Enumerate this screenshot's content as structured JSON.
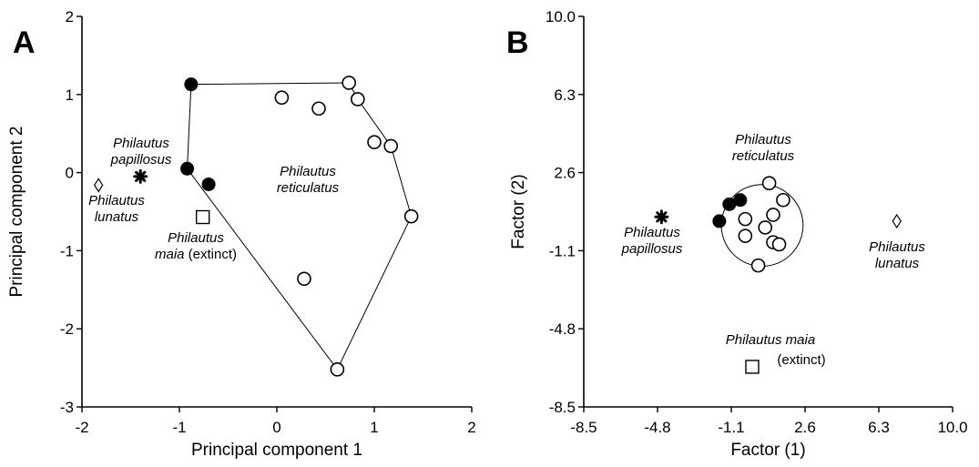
{
  "chart_data": [
    {
      "type": "scatter",
      "panel_label": "A",
      "xlabel": "Principal component 1",
      "ylabel": "Principal component 2",
      "xlim": [
        -2,
        2
      ],
      "ylim": [
        -3,
        2
      ],
      "xticks": [
        -2,
        -1,
        0,
        1,
        2
      ],
      "yticks": [
        -3,
        -2,
        -1,
        0,
        1,
        2
      ],
      "xtick_labels": [
        "-2",
        "-1",
        "0",
        "1",
        "2"
      ],
      "ytick_labels": [
        "-3",
        "-2",
        "-1",
        "0",
        "1",
        "2"
      ],
      "grid": false,
      "series": [
        {
          "marker": "filled-circle",
          "points": [
            [
              -0.88,
              1.13
            ],
            [
              -0.92,
              0.05
            ],
            [
              -0.7,
              -0.15
            ]
          ]
        },
        {
          "marker": "open-circle",
          "points": [
            [
              0.05,
              0.96
            ],
            [
              0.43,
              0.82
            ],
            [
              0.74,
              1.15
            ],
            [
              0.83,
              0.94
            ],
            [
              1.0,
              0.39
            ],
            [
              1.17,
              0.34
            ],
            [
              1.38,
              -0.56
            ],
            [
              0.28,
              -1.36
            ],
            [
              0.62,
              -2.52
            ]
          ]
        },
        {
          "marker": "asterisk",
          "points": [
            [
              -1.4,
              -0.05
            ]
          ]
        },
        {
          "marker": "open-diamond",
          "points": [
            [
              -1.83,
              -0.16
            ]
          ]
        },
        {
          "marker": "open-square",
          "points": [
            [
              -0.76,
              -0.57
            ]
          ]
        }
      ],
      "hull": [
        [
          -0.88,
          1.13
        ],
        [
          0.74,
          1.15
        ],
        [
          0.83,
          0.94
        ],
        [
          1.17,
          0.34
        ],
        [
          1.38,
          -0.56
        ],
        [
          0.62,
          -2.52
        ],
        [
          -0.92,
          0.05
        ]
      ],
      "annotations": [
        {
          "lines": [
            "Philautus",
            "papillosus"
          ],
          "style": "italic",
          "at": [
            -1.5,
            0.27
          ]
        },
        {
          "lines": [
            "Philautus",
            "lunatus"
          ],
          "style": "italic",
          "at": [
            -1.7,
            -0.42
          ]
        },
        {
          "lines": [
            "Philautus",
            "reticulatus"
          ],
          "style": "italic",
          "at": [
            0.1,
            0.0
          ]
        },
        {
          "lines": [
            "Philautus",
            "maia"
          ],
          "extra": "(extinct)",
          "style": "italic",
          "at": [
            -0.88,
            -0.85
          ]
        }
      ]
    },
    {
      "type": "scatter",
      "panel_label": "B",
      "xlabel": "Factor (1)",
      "ylabel": "Factor (2)",
      "xlim": [
        -8.5,
        10.0
      ],
      "ylim": [
        -8.5,
        10.0
      ],
      "xticks": [
        -8.5,
        -4.8,
        -1.1,
        2.6,
        6.3,
        10.0
      ],
      "yticks": [
        -8.5,
        -4.8,
        -1.1,
        2.6,
        6.3,
        10.0
      ],
      "xtick_labels": [
        "-8.5",
        "-4.8",
        "-1.1",
        "2.6",
        "6.3",
        "10.0"
      ],
      "ytick_labels": [
        "-8.5",
        "-4.8",
        "-1.1",
        "2.6",
        "6.3",
        "10.0"
      ],
      "grid": false,
      "series": [
        {
          "marker": "filled-circle",
          "points": [
            [
              -1.7,
              0.3
            ],
            [
              -1.2,
              1.1
            ],
            [
              -0.65,
              1.3
            ]
          ]
        },
        {
          "marker": "open-circle",
          "points": [
            [
              0.8,
              2.1
            ],
            [
              1.5,
              1.3
            ],
            [
              1.0,
              0.6
            ],
            [
              -0.4,
              0.4
            ],
            [
              0.6,
              0.0
            ],
            [
              -0.4,
              -0.4
            ],
            [
              1.0,
              -0.7
            ],
            [
              1.3,
              -0.8
            ],
            [
              0.25,
              -1.8
            ]
          ]
        },
        {
          "marker": "asterisk",
          "points": [
            [
              -4.6,
              0.5
            ]
          ]
        },
        {
          "marker": "open-diamond",
          "points": [
            [
              7.2,
              0.3
            ]
          ]
        },
        {
          "marker": "open-square",
          "points": [
            [
              -0.05,
              -6.6
            ]
          ]
        }
      ],
      "enclosing_circle": {
        "center": [
          0.45,
          0.1
        ],
        "radius": 2.05
      },
      "annotations": [
        {
          "lines": [
            "Philautus",
            "reticulatus"
          ],
          "style": "italic",
          "at": [
            0.5,
            3.5
          ]
        },
        {
          "lines": [
            "Philautus",
            "papillosus"
          ],
          "style": "italic",
          "at": [
            -4.6,
            -0.6
          ]
        },
        {
          "lines": [
            "Philautus",
            "lunatus"
          ],
          "style": "italic",
          "at": [
            7.3,
            -0.9
          ]
        },
        {
          "lines": [
            "Philautus maia"
          ],
          "style": "italic",
          "at": [
            0.1,
            -5.4
          ]
        },
        {
          "lines": [],
          "extra": "(extinct)",
          "style": "plain",
          "at": [
            0.65,
            -6.6
          ]
        }
      ]
    }
  ]
}
